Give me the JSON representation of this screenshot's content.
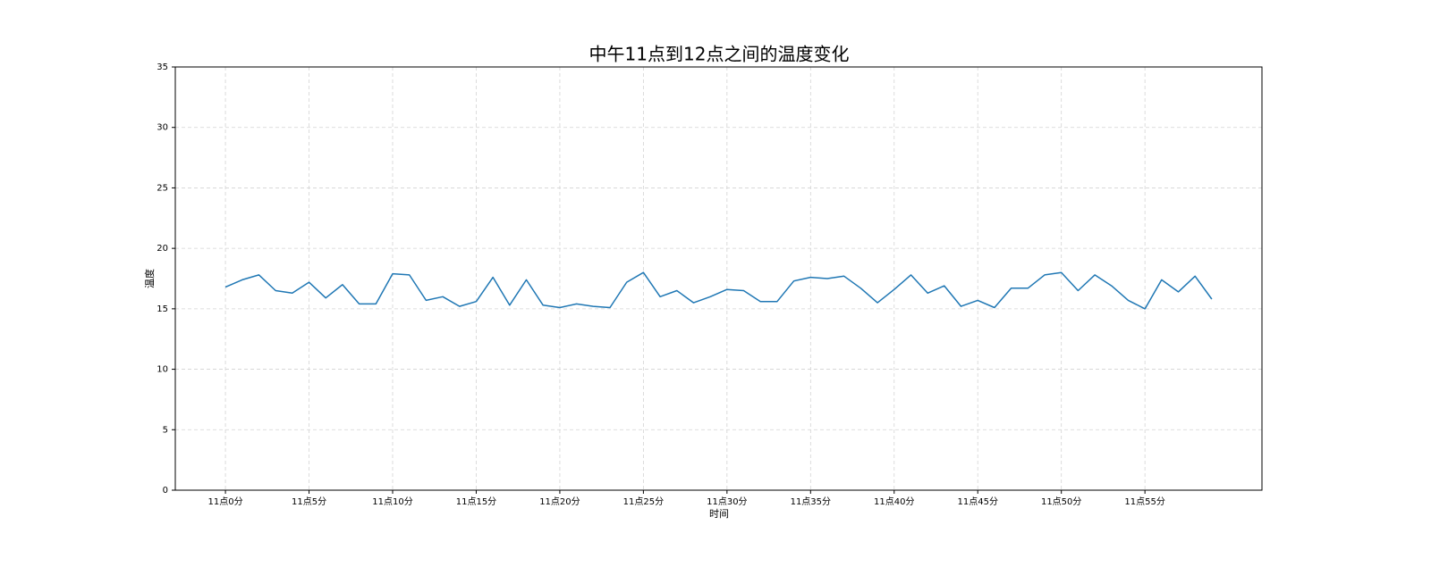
{
  "chart_data": {
    "type": "line",
    "title": "中午11点到12点之间的温度变化",
    "xlabel": "时间",
    "ylabel": "温度",
    "ylim": [
      0,
      35
    ],
    "xlim": [
      -3,
      62
    ],
    "yticks": [
      0,
      5,
      10,
      15,
      20,
      25,
      30,
      35
    ],
    "xticks": [
      0,
      5,
      10,
      15,
      20,
      25,
      30,
      35,
      40,
      45,
      50,
      55
    ],
    "xtick_labels": [
      "11点0分",
      "11点5分",
      "11点10分",
      "11点15分",
      "11点20分",
      "11点25分",
      "11点30分",
      "11点35分",
      "11点40分",
      "11点45分",
      "11点50分",
      "11点55分"
    ],
    "grid": true,
    "grid_style": "dashed",
    "series": [
      {
        "color": "#1f77b4",
        "x": [
          0,
          1,
          2,
          3,
          4,
          5,
          6,
          7,
          8,
          9,
          10,
          11,
          12,
          13,
          14,
          15,
          16,
          17,
          18,
          19,
          20,
          21,
          22,
          23,
          24,
          25,
          26,
          27,
          28,
          29,
          30,
          31,
          32,
          33,
          34,
          35,
          36,
          37,
          38,
          39,
          40,
          41,
          42,
          43,
          44,
          45,
          46,
          47,
          48,
          49,
          50,
          51,
          52,
          53,
          54,
          55,
          56,
          57,
          58,
          59
        ],
        "values": [
          16.8,
          17.4,
          17.8,
          16.5,
          16.3,
          17.2,
          15.9,
          17.0,
          15.4,
          15.4,
          17.9,
          17.8,
          15.7,
          16.0,
          15.2,
          15.6,
          17.6,
          15.3,
          17.4,
          15.3,
          15.1,
          15.4,
          15.2,
          15.1,
          17.2,
          18.0,
          16.0,
          16.5,
          15.5,
          16.0,
          16.6,
          16.5,
          15.6,
          15.6,
          17.3,
          17.6,
          17.5,
          17.7,
          16.7,
          15.5,
          16.6,
          17.8,
          16.3,
          16.9,
          15.2,
          15.7,
          15.1,
          16.7,
          16.7,
          17.8,
          18.0,
          16.5,
          17.8,
          16.9,
          15.7,
          15.0,
          17.4,
          16.4,
          17.7,
          15.8
        ]
      }
    ]
  }
}
